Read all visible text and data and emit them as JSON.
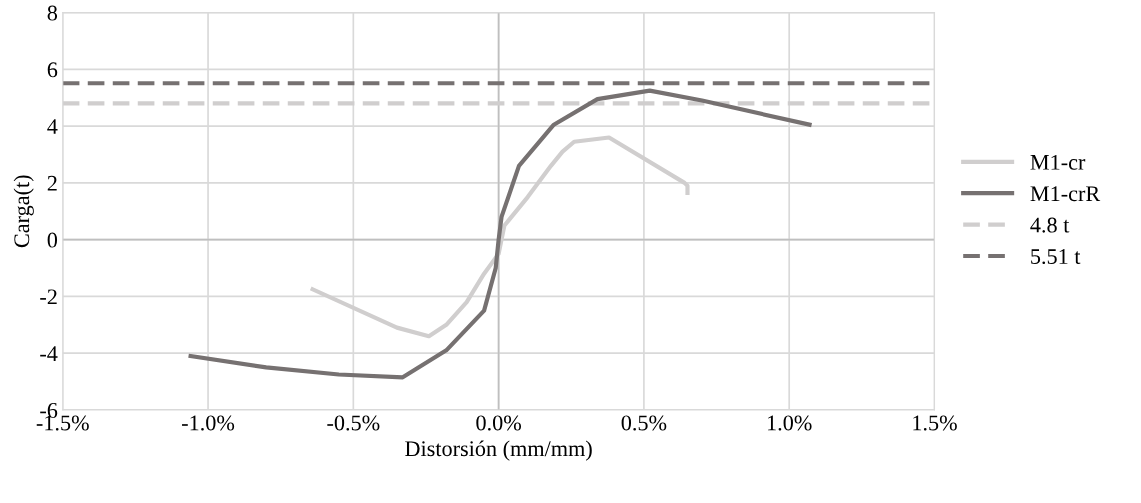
{
  "chart_data": {
    "type": "line",
    "xlabel": "Distorsión (mm/mm)",
    "ylabel": "Carga(t)",
    "xlim": [
      -1.5,
      1.5
    ],
    "xticks": [
      {
        "value": -1.5,
        "label": "-1.5%"
      },
      {
        "value": -1.0,
        "label": "-1.0%"
      },
      {
        "value": -0.5,
        "label": "-0.5%"
      },
      {
        "value": 0.0,
        "label": "0.0%"
      },
      {
        "value": 0.5,
        "label": "0.5%"
      },
      {
        "value": 1.0,
        "label": "1.0%"
      },
      {
        "value": 1.5,
        "label": "1.5%"
      }
    ],
    "ylim": [
      -6,
      8
    ],
    "yticks": [
      -6,
      -4,
      -2,
      0,
      2,
      4,
      6,
      8
    ],
    "grid": true,
    "legend": "right",
    "marker": "none",
    "line_style": "solid",
    "series": [
      {
        "name": "M1-cr",
        "color": "#d0cece",
        "x": [
          -0.64,
          -0.35,
          -0.24,
          -0.18,
          -0.11,
          -0.05,
          0.0,
          0.02,
          0.1,
          0.18,
          0.22,
          0.26,
          0.38,
          0.64,
          0.65,
          0.65
        ],
        "values": [
          -1.75,
          -3.1,
          -3.4,
          -3.0,
          -2.2,
          -1.2,
          -0.5,
          0.5,
          1.5,
          2.6,
          3.1,
          3.45,
          3.6,
          2.0,
          1.9,
          1.65
        ]
      },
      {
        "name": "M1-crR",
        "color": "#767171",
        "x": [
          -1.06,
          -0.8,
          -0.55,
          -0.33,
          -0.18,
          -0.05,
          -0.01,
          0.0,
          0.01,
          0.07,
          0.19,
          0.34,
          0.52,
          0.7,
          1.07
        ],
        "values": [
          -4.1,
          -4.5,
          -4.75,
          -4.85,
          -3.9,
          -2.5,
          -1.0,
          0.0,
          0.8,
          2.6,
          4.05,
          4.95,
          5.25,
          4.9,
          4.05
        ]
      }
    ],
    "ref_lines": [
      {
        "axis": "y",
        "value": 4.8,
        "label": "4.8 t",
        "color": "#d0cece",
        "line_style": "dashed"
      },
      {
        "axis": "y",
        "value": 5.51,
        "label": "5.51 t",
        "color": "#767171",
        "line_style": "dashed"
      }
    ]
  }
}
